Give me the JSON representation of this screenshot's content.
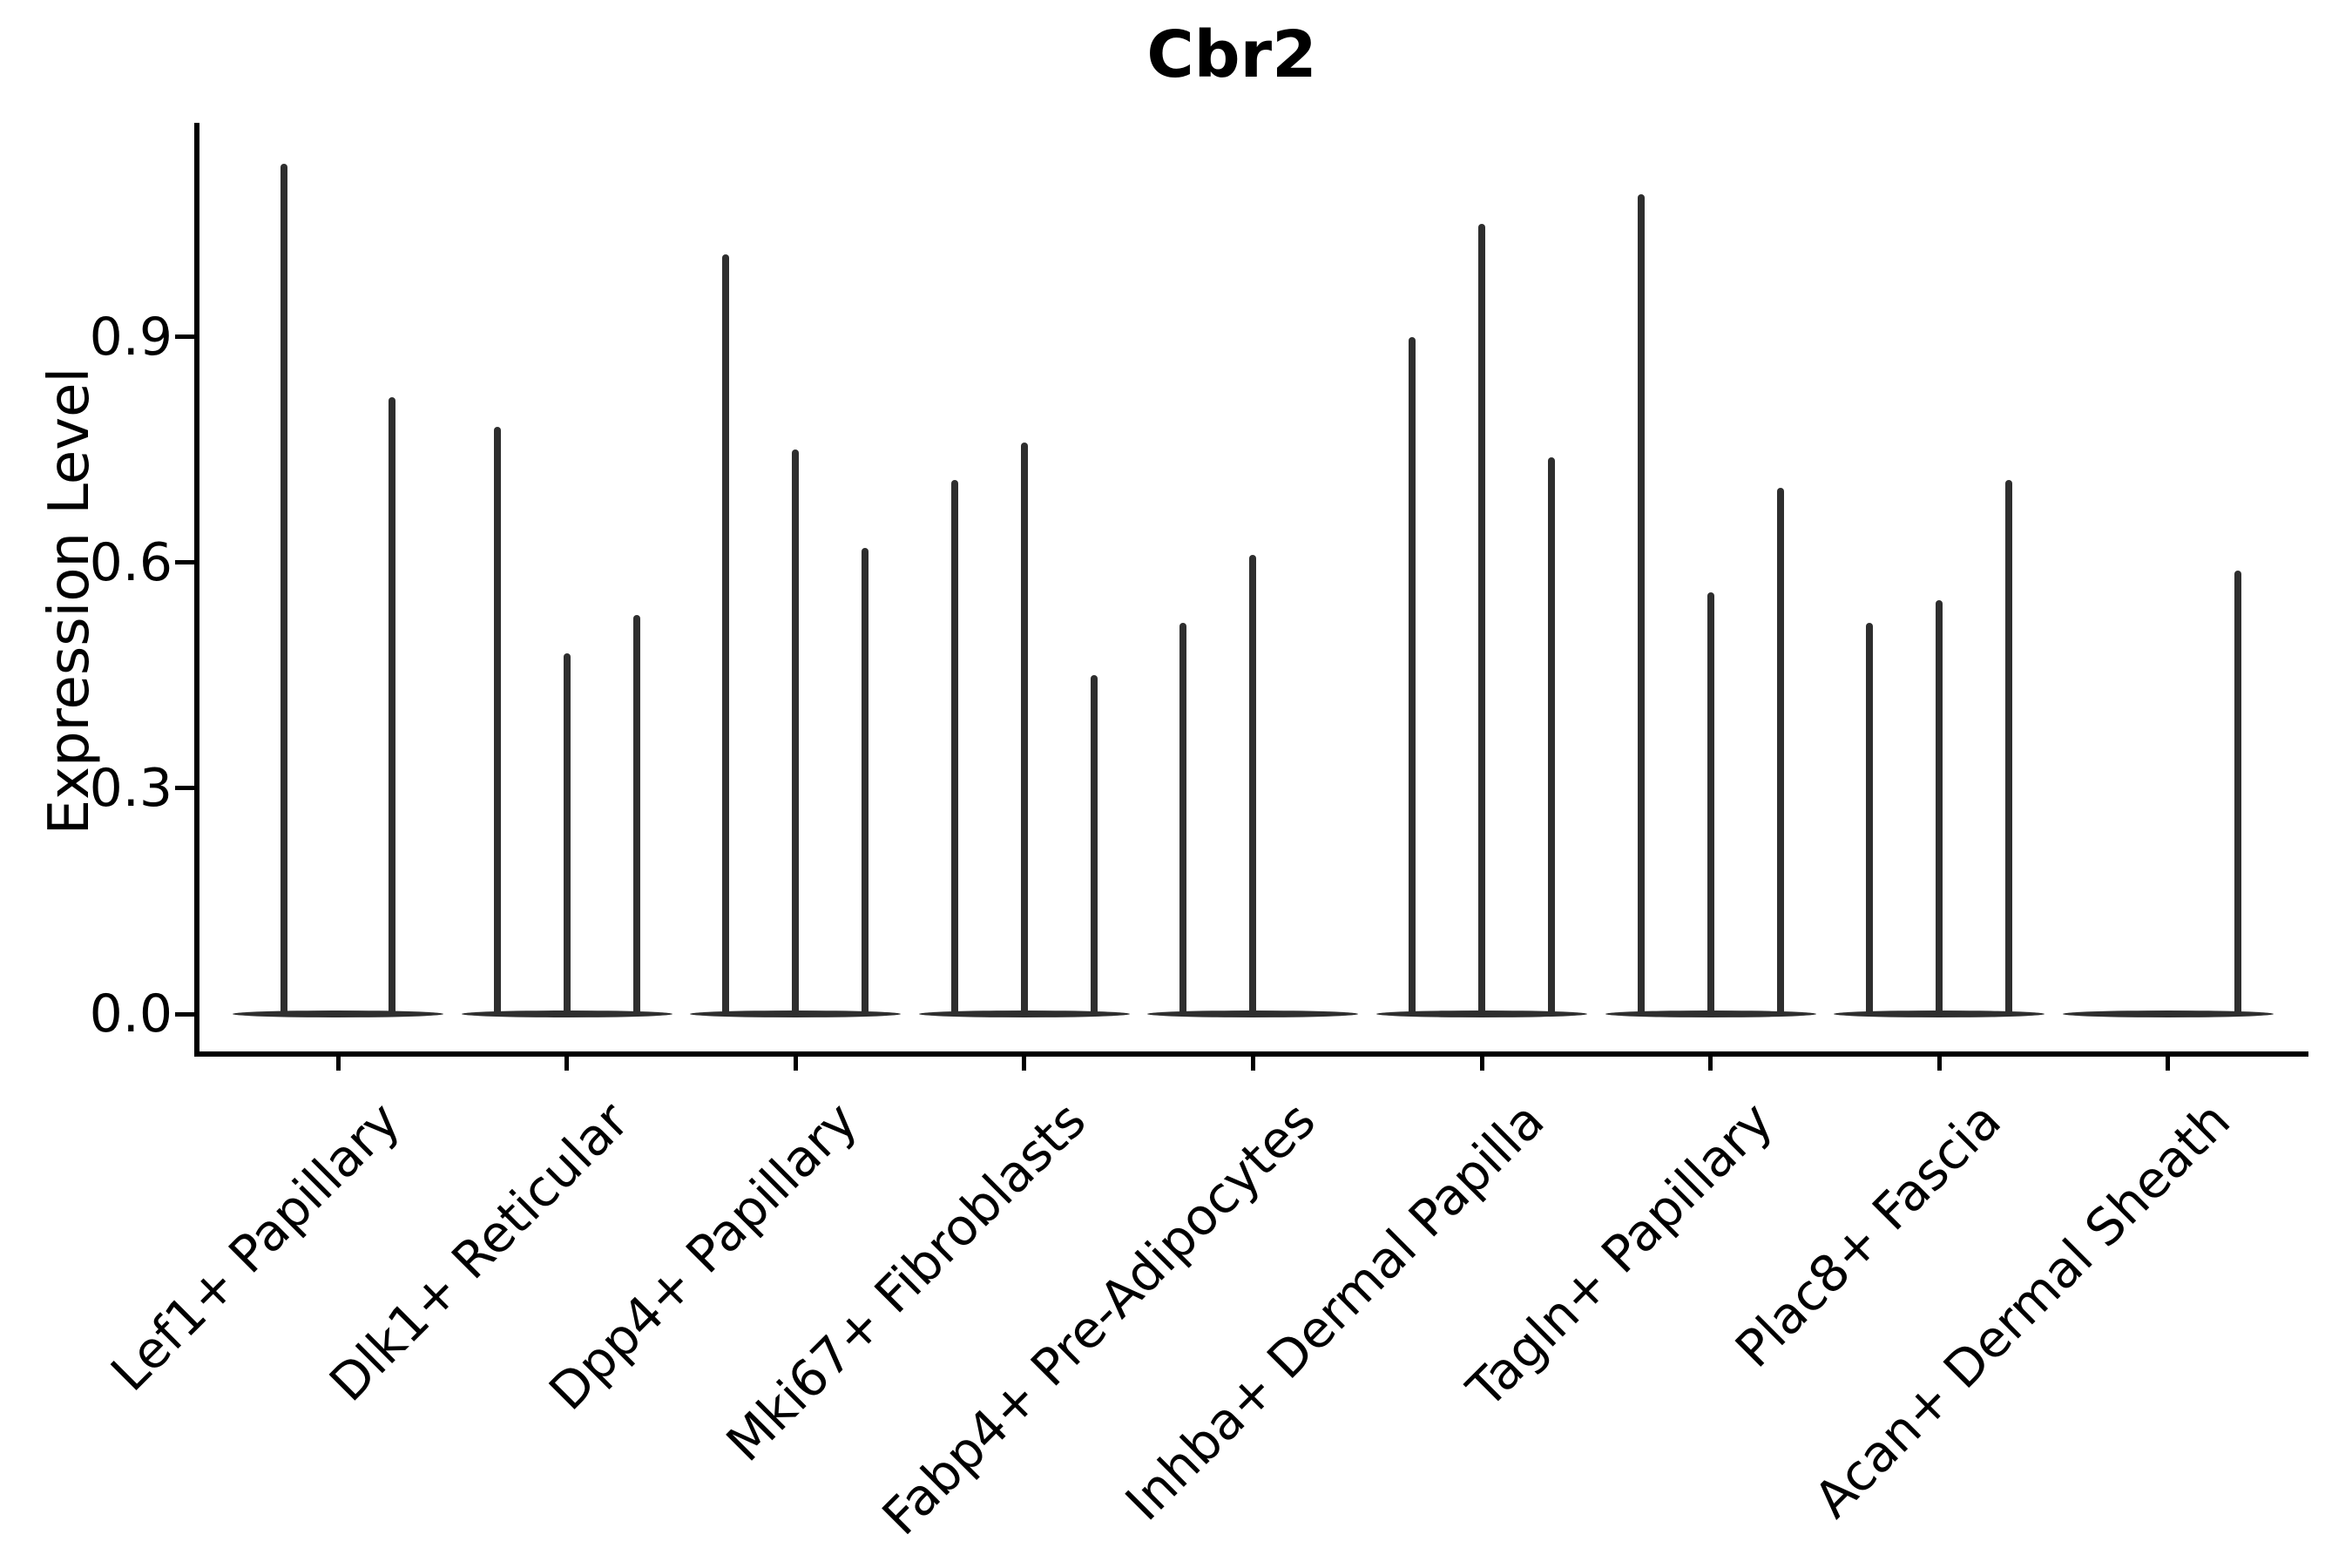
{
  "title": "Cbr2",
  "chart_data": {
    "type": "violin",
    "title": "Cbr2",
    "xlabel": "",
    "ylabel": "Expression Level",
    "ylim": [
      -0.053,
      1.185
    ],
    "yticks": [
      0.0,
      0.3,
      0.6,
      0.9
    ],
    "ytick_labels": [
      "0.0",
      "0.3",
      "0.6",
      "0.9"
    ],
    "grid": false,
    "legend_position": "none",
    "violin_color": "#2e2e2e",
    "axis_color": "#000000",
    "categories": [
      "Lef1+ Papillary",
      "Dlk1+ Reticular",
      "Dpp4+ Papillary",
      "Mki67+ Fibroblasts",
      "Fabp4+ Pre-Adipocytes",
      "Inhba+ Dermal Papilla",
      "Tagln+ Papillary",
      "Plac8+ Fascia",
      "Acan+ Dermal Sheath"
    ],
    "series": [
      {
        "category": "Lef1+ Papillary",
        "violins": [
          {
            "offset": -62,
            "max": 1.13
          },
          {
            "offset": 62,
            "max": 0.82
          }
        ]
      },
      {
        "category": "Dlk1+ Reticular",
        "violins": [
          {
            "offset": -80,
            "max": 0.78
          },
          {
            "offset": 0,
            "max": 0.48
          },
          {
            "offset": 80,
            "max": 0.53
          }
        ]
      },
      {
        "category": "Dpp4+ Papillary",
        "violins": [
          {
            "offset": -80,
            "max": 1.01
          },
          {
            "offset": 0,
            "max": 0.75
          },
          {
            "offset": 80,
            "max": 0.62
          }
        ]
      },
      {
        "category": "Mki67+ Fibroblasts",
        "violins": [
          {
            "offset": -80,
            "max": 0.71
          },
          {
            "offset": 0,
            "max": 0.76
          },
          {
            "offset": 80,
            "max": 0.45
          }
        ]
      },
      {
        "category": "Fabp4+ Pre-Adipocytes",
        "violins": [
          {
            "offset": -80,
            "max": 0.52
          },
          {
            "offset": 0,
            "max": 0.61
          },
          {
            "offset": 80,
            "max": 0.0
          }
        ]
      },
      {
        "category": "Inhba+ Dermal Papilla",
        "violins": [
          {
            "offset": -80,
            "max": 0.9
          },
          {
            "offset": 0,
            "max": 1.05
          },
          {
            "offset": 80,
            "max": 0.74
          }
        ]
      },
      {
        "category": "Tagln+ Papillary",
        "violins": [
          {
            "offset": -80,
            "max": 1.09
          },
          {
            "offset": 0,
            "max": 0.56
          },
          {
            "offset": 80,
            "max": 0.7
          }
        ]
      },
      {
        "category": "Plac8+ Fascia",
        "violins": [
          {
            "offset": -80,
            "max": 0.52
          },
          {
            "offset": 0,
            "max": 0.55
          },
          {
            "offset": 80,
            "max": 0.71
          }
        ]
      },
      {
        "category": "Acan+ Dermal Sheath",
        "violins": [
          {
            "offset": -80,
            "max": 0.0
          },
          {
            "offset": 0,
            "max": 0.0
          },
          {
            "offset": 80,
            "max": 0.59
          }
        ]
      }
    ]
  }
}
